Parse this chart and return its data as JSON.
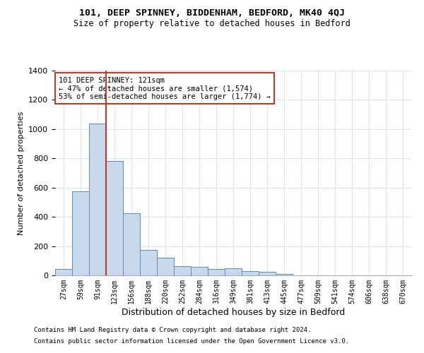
{
  "title1": "101, DEEP SPINNEY, BIDDENHAM, BEDFORD, MK40 4QJ",
  "title2": "Size of property relative to detached houses in Bedford",
  "xlabel": "Distribution of detached houses by size in Bedford",
  "ylabel": "Number of detached properties",
  "bar_labels": [
    "27sqm",
    "59sqm",
    "91sqm",
    "123sqm",
    "156sqm",
    "188sqm",
    "220sqm",
    "252sqm",
    "284sqm",
    "316sqm",
    "349sqm",
    "381sqm",
    "413sqm",
    "445sqm",
    "477sqm",
    "509sqm",
    "541sqm",
    "574sqm",
    "606sqm",
    "638sqm",
    "670sqm"
  ],
  "bar_values": [
    45,
    575,
    1040,
    780,
    425,
    175,
    120,
    65,
    60,
    45,
    50,
    28,
    22,
    10,
    0,
    0,
    0,
    0,
    0,
    0,
    0
  ],
  "bar_color": "#c9d9ec",
  "bar_edge_color": "#5a8ab5",
  "vline_color": "#c0392b",
  "annotation_text": "101 DEEP SPINNEY: 121sqm\n← 47% of detached houses are smaller (1,574)\n53% of semi-detached houses are larger (1,774) →",
  "annotation_box_color": "#c0392b",
  "ylim": [
    0,
    1400
  ],
  "yticks": [
    0,
    200,
    400,
    600,
    800,
    1000,
    1200,
    1400
  ],
  "footer1": "Contains HM Land Registry data © Crown copyright and database right 2024.",
  "footer2": "Contains public sector information licensed under the Open Government Licence v3.0.",
  "background_color": "#ffffff",
  "grid_color": "#d8e4f0"
}
